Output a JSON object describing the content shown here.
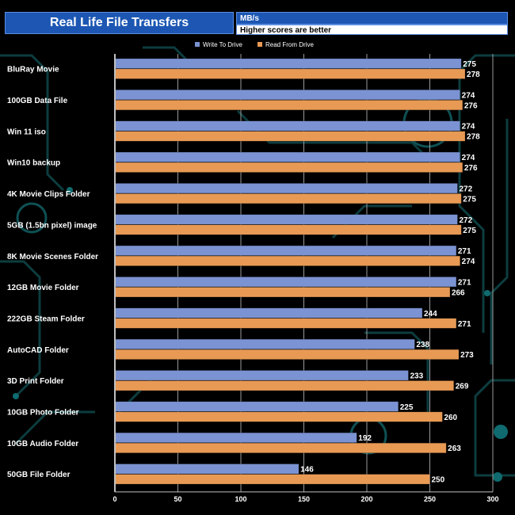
{
  "header": {
    "title": "Real Life File Transfers",
    "unit": "MB/s",
    "note": "Higher scores are better"
  },
  "colors": {
    "write": "#7b93d2",
    "read": "#e89a55",
    "axis": "#c0c0c0",
    "grid": "#9a9a9a"
  },
  "chart_data": {
    "type": "bar",
    "orientation": "horizontal",
    "title": "Real Life File Transfers",
    "unit": "MB/s",
    "xlim": [
      0,
      300
    ],
    "xticks": [
      0,
      50,
      100,
      150,
      200,
      250,
      300
    ],
    "legend_position": "top",
    "categories": [
      "BluRay Movie",
      "100GB Data File",
      "Win 11 iso",
      "Win10 backup",
      "4K Movie Clips Folder",
      "5GB (1.5bn pixel) image",
      "8K Movie Scenes Folder",
      "12GB Movie Folder",
      "222GB Steam Folder",
      "AutoCAD Folder",
      "3D Print Folder",
      "10GB Photo Folder",
      "10GB Audio Folder",
      "50GB File Folder"
    ],
    "series": [
      {
        "name": "Write To  Drive",
        "values": [
          275,
          274,
          274,
          274,
          272,
          272,
          271,
          271,
          244,
          238,
          233,
          225,
          192,
          146
        ]
      },
      {
        "name": "Read From  Drive",
        "values": [
          278,
          276,
          278,
          276,
          275,
          275,
          274,
          266,
          271,
          273,
          269,
          260,
          263,
          250
        ]
      }
    ]
  }
}
